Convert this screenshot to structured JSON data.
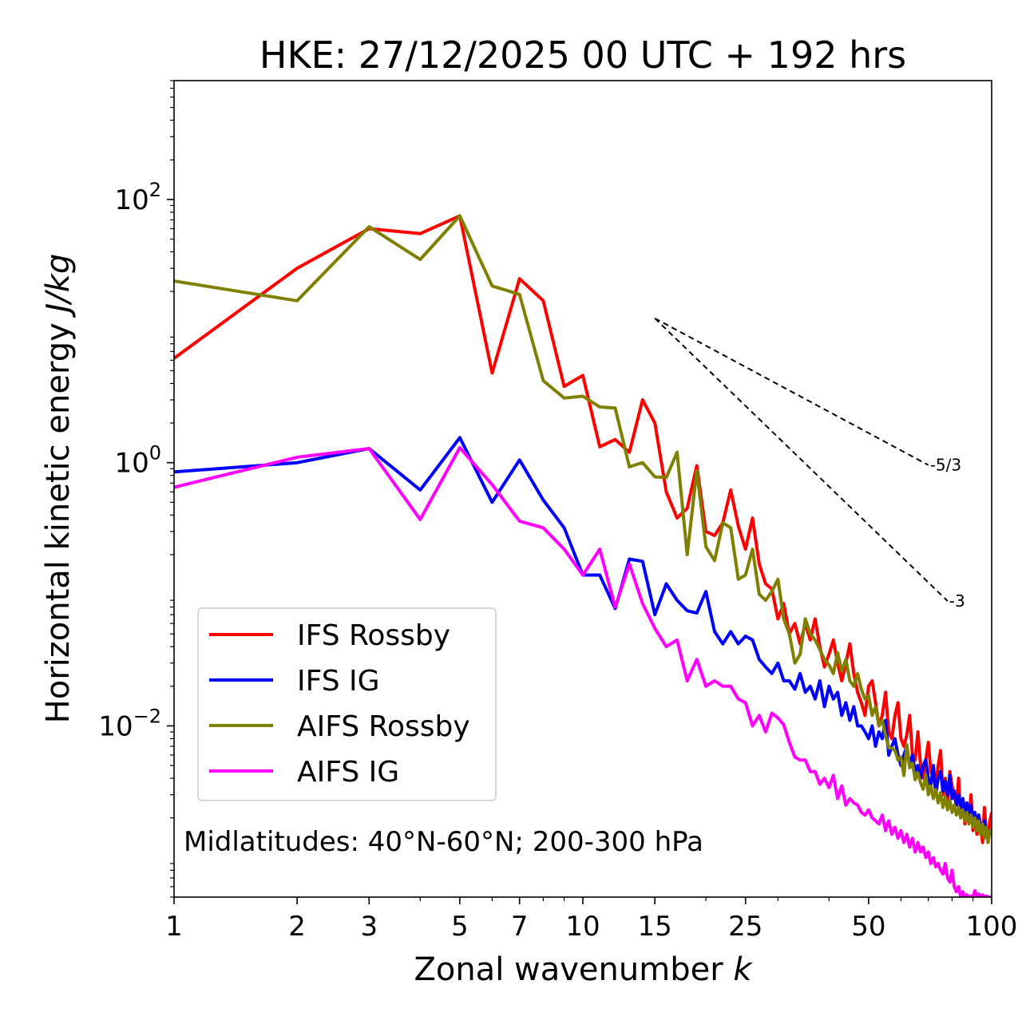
{
  "chart_data": {
    "type": "line",
    "title": "HKE: 27/12/2025 00 UTC + 192 hrs",
    "xlabel": "Zonal wavenumber",
    "xlabel_italic": "k",
    "ylabel": "Horizontal kinetic energy",
    "ylabel_italic": "J/kg",
    "xscale": "log",
    "yscale": "log",
    "xlim": [
      1,
      100
    ],
    "ylim": [
      0.0005,
      800
    ],
    "x_ticks": [
      {
        "value": 1,
        "label": "1"
      },
      {
        "value": 2,
        "label": "2"
      },
      {
        "value": 3,
        "label": "3"
      },
      {
        "value": 5,
        "label": "5"
      },
      {
        "value": 7,
        "label": "7"
      },
      {
        "value": 10,
        "label": "10"
      },
      {
        "value": 15,
        "label": "15"
      },
      {
        "value": 25,
        "label": "25"
      },
      {
        "value": 50,
        "label": "50"
      },
      {
        "value": 100,
        "label": "100"
      }
    ],
    "y_ticks": [
      {
        "value": 0.01,
        "base": "10",
        "exp": "−2"
      },
      {
        "value": 1,
        "base": "10",
        "exp": "0"
      },
      {
        "value": 100,
        "base": "10",
        "exp": "2"
      }
    ],
    "annotation": "Midlatitudes: 40°N-60°N; 200-300 hPa",
    "legend_position": "lower-left",
    "reference_slopes": [
      {
        "label": "-5/3",
        "slope": -1.6667,
        "x_start": 15,
        "y_start": 12.5,
        "x_end": 70
      },
      {
        "label": "-3",
        "slope": -3,
        "x_start": 15,
        "y_start": 12.5,
        "x_end": 78
      }
    ],
    "series": [
      {
        "name": "IFS Rossby",
        "color": "#ff0000",
        "x": [
          1,
          2,
          3,
          4,
          5,
          6,
          7,
          8,
          9,
          10,
          11,
          12,
          13,
          14,
          15,
          16,
          17,
          18,
          19,
          20,
          21,
          22,
          23,
          24,
          25,
          26,
          27,
          28,
          29,
          30,
          31,
          32,
          33,
          34,
          35,
          36,
          37,
          38,
          39,
          40,
          41,
          42,
          43,
          44,
          45,
          46,
          47,
          48,
          49,
          50,
          51,
          52,
          53,
          54,
          55,
          56,
          57,
          58,
          59,
          60,
          61,
          62,
          63,
          64,
          65,
          66,
          67,
          68,
          69,
          70,
          71,
          72,
          73,
          74,
          75,
          76,
          77,
          78,
          79,
          80,
          81,
          82,
          83,
          84,
          85,
          86,
          87,
          88,
          89,
          90,
          91,
          92,
          93,
          94,
          95,
          96,
          97,
          98,
          99,
          100
        ],
        "values": [
          6.2,
          30,
          60,
          55,
          75,
          4.8,
          25,
          17,
          3.8,
          4.6,
          1.32,
          1.5,
          1.2,
          3.0,
          2.0,
          0.6,
          0.38,
          0.45,
          0.95,
          0.3,
          0.28,
          0.35,
          0.62,
          0.33,
          0.22,
          0.38,
          0.17,
          0.12,
          0.11,
          0.065,
          0.085,
          0.05,
          0.06,
          0.042,
          0.06,
          0.045,
          0.065,
          0.04,
          0.028,
          0.035,
          0.045,
          0.03,
          0.022,
          0.03,
          0.042,
          0.025,
          0.018,
          0.015,
          0.012,
          0.02,
          0.022,
          0.015,
          0.01,
          0.012,
          0.018,
          0.009,
          0.008,
          0.012,
          0.015,
          0.008,
          0.007,
          0.0085,
          0.012,
          0.006,
          0.0055,
          0.009,
          0.005,
          0.004,
          0.0055,
          0.0075,
          0.0045,
          0.004,
          0.0035,
          0.005,
          0.0065,
          0.003,
          0.004,
          0.0025,
          0.0045,
          0.0035,
          0.003,
          0.0025,
          0.004,
          0.002,
          0.0028,
          0.0018,
          0.0025,
          0.002,
          0.003,
          0.0016,
          0.0022,
          0.0015,
          0.002,
          0.0018,
          0.0013,
          0.0024,
          0.0016,
          0.0014,
          0.0019,
          0.0022
        ]
      },
      {
        "name": "IFS IG",
        "color": "#0000ff",
        "x": [
          1,
          2,
          3,
          4,
          5,
          6,
          7,
          8,
          9,
          10,
          11,
          12,
          13,
          14,
          15,
          16,
          17,
          18,
          19,
          20,
          21,
          22,
          23,
          24,
          25,
          26,
          27,
          28,
          29,
          30,
          31,
          32,
          33,
          34,
          35,
          36,
          37,
          38,
          39,
          40,
          41,
          42,
          43,
          44,
          45,
          46,
          47,
          48,
          49,
          50,
          51,
          52,
          53,
          54,
          55,
          56,
          57,
          58,
          59,
          60,
          61,
          62,
          63,
          64,
          65,
          66,
          67,
          68,
          69,
          70,
          71,
          72,
          73,
          74,
          75,
          76,
          77,
          78,
          79,
          80,
          81,
          82,
          83,
          84,
          85,
          86,
          87,
          88,
          89,
          90,
          91,
          92,
          93,
          94,
          95,
          96,
          97,
          98,
          99,
          100
        ],
        "values": [
          0.85,
          1.0,
          1.28,
          0.62,
          1.55,
          0.5,
          1.05,
          0.52,
          0.32,
          0.14,
          0.14,
          0.078,
          0.185,
          0.178,
          0.07,
          0.12,
          0.09,
          0.075,
          0.072,
          0.105,
          0.052,
          0.042,
          0.052,
          0.042,
          0.048,
          0.045,
          0.032,
          0.028,
          0.025,
          0.03,
          0.022,
          0.022,
          0.019,
          0.025,
          0.018,
          0.02,
          0.016,
          0.022,
          0.014,
          0.02,
          0.016,
          0.018,
          0.012,
          0.015,
          0.011,
          0.014,
          0.01,
          0.01,
          0.009,
          0.008,
          0.01,
          0.007,
          0.009,
          0.008,
          0.011,
          0.006,
          0.007,
          0.008,
          0.006,
          0.005,
          0.006,
          0.007,
          0.005,
          0.006,
          0.0045,
          0.005,
          0.004,
          0.005,
          0.0055,
          0.004,
          0.0035,
          0.005,
          0.003,
          0.004,
          0.0045,
          0.0032,
          0.0038,
          0.003,
          0.0042,
          0.0028,
          0.0032,
          0.0025,
          0.003,
          0.0024,
          0.0028,
          0.0022,
          0.0026,
          0.0021,
          0.0025,
          0.0019,
          0.0022,
          0.0018,
          0.0021,
          0.0017,
          0.0016,
          0.0019,
          0.0015,
          0.0014,
          0.0016,
          0.0015
        ]
      },
      {
        "name": "AIFS Rossby",
        "color": "#808000",
        "x": [
          1,
          2,
          3,
          4,
          5,
          6,
          7,
          8,
          9,
          10,
          11,
          12,
          13,
          14,
          15,
          16,
          17,
          18,
          19,
          20,
          21,
          22,
          23,
          24,
          25,
          26,
          27,
          28,
          29,
          30,
          31,
          32,
          33,
          34,
          35,
          36,
          37,
          38,
          39,
          40,
          41,
          42,
          43,
          44,
          45,
          46,
          47,
          48,
          49,
          50,
          51,
          52,
          53,
          54,
          55,
          56,
          57,
          58,
          59,
          60,
          61,
          62,
          63,
          64,
          65,
          66,
          67,
          68,
          69,
          70,
          71,
          72,
          73,
          74,
          75,
          76,
          77,
          78,
          79,
          80,
          81,
          82,
          83,
          84,
          85,
          86,
          87,
          88,
          89,
          90,
          91,
          92,
          93,
          94,
          95,
          96,
          97,
          98,
          99,
          100
        ],
        "values": [
          24,
          17,
          62,
          35,
          75,
          22,
          19,
          4.2,
          3.1,
          3.2,
          2.65,
          2.6,
          0.93,
          1.0,
          0.78,
          0.77,
          1.2,
          0.2,
          0.87,
          0.23,
          0.18,
          0.35,
          0.32,
          0.13,
          0.14,
          0.22,
          0.1,
          0.09,
          0.105,
          0.13,
          0.065,
          0.05,
          0.03,
          0.035,
          0.065,
          0.05,
          0.045,
          0.038,
          0.032,
          0.029,
          0.025,
          0.036,
          0.026,
          0.032,
          0.022,
          0.02,
          0.025,
          0.019,
          0.016,
          0.017,
          0.012,
          0.014,
          0.01,
          0.011,
          0.0085,
          0.0068,
          0.0068,
          0.0065,
          0.0055,
          0.0058,
          0.0042,
          0.0072,
          0.0048,
          0.0052,
          0.0039,
          0.0044,
          0.0037,
          0.0033,
          0.0042,
          0.003,
          0.0035,
          0.0028,
          0.0033,
          0.0026,
          0.0031,
          0.0024,
          0.0029,
          0.0023,
          0.0027,
          0.0022,
          0.0025,
          0.0021,
          0.0024,
          0.002,
          0.0023,
          0.0019,
          0.0022,
          0.0018,
          0.0021,
          0.0017,
          0.002,
          0.0016,
          0.0019,
          0.0015,
          0.0018,
          0.0014,
          0.0017,
          0.0013,
          0.0016,
          0.0015
        ]
      },
      {
        "name": "AIFS IG",
        "color": "#ff00ff",
        "x": [
          1,
          2,
          3,
          4,
          5,
          6,
          7,
          8,
          9,
          10,
          11,
          12,
          13,
          14,
          15,
          16,
          17,
          18,
          19,
          20,
          21,
          22,
          23,
          24,
          25,
          26,
          27,
          28,
          29,
          30,
          31,
          32,
          33,
          34,
          35,
          36,
          37,
          38,
          39,
          40,
          41,
          42,
          43,
          44,
          45,
          46,
          47,
          48,
          49,
          50,
          51,
          52,
          53,
          54,
          55,
          56,
          57,
          58,
          59,
          60,
          61,
          62,
          63,
          64,
          65,
          66,
          67,
          68,
          69,
          70,
          71,
          72,
          73,
          74,
          75,
          76,
          77,
          78,
          79,
          80,
          81,
          82,
          83,
          84,
          85,
          86,
          87,
          88,
          89,
          90,
          91,
          92,
          93,
          94,
          95,
          96,
          97,
          98,
          99,
          100
        ],
        "values": [
          0.65,
          1.1,
          1.28,
          0.37,
          1.3,
          0.68,
          0.36,
          0.32,
          0.22,
          0.14,
          0.22,
          0.08,
          0.17,
          0.085,
          0.055,
          0.04,
          0.045,
          0.022,
          0.032,
          0.02,
          0.022,
          0.02,
          0.02,
          0.016,
          0.015,
          0.01,
          0.012,
          0.009,
          0.0125,
          0.0115,
          0.0102,
          0.0075,
          0.0058,
          0.0055,
          0.0055,
          0.0045,
          0.0045,
          0.0036,
          0.004,
          0.0034,
          0.0042,
          0.0028,
          0.0035,
          0.0025,
          0.0028,
          0.0026,
          0.0025,
          0.0022,
          0.0021,
          0.0023,
          0.002,
          0.0019,
          0.0018,
          0.0021,
          0.0016,
          0.0019,
          0.0015,
          0.0017,
          0.0014,
          0.0016,
          0.0013,
          0.0015,
          0.0012,
          0.0014,
          0.0011,
          0.0013,
          0.0011,
          0.0012,
          0.001,
          0.0011,
          0.0009,
          0.001,
          0.00085,
          0.0009,
          0.0008,
          0.00075,
          0.0009,
          0.0007,
          0.00065,
          0.0008,
          0.0006,
          0.00055,
          0.0006,
          0.0005,
          0.00055,
          0.0005,
          0.00052,
          0.0005,
          0.00051,
          0.0005,
          0.00056,
          0.0005,
          0.00053,
          0.0005,
          0.00052,
          0.0005,
          0.00051,
          0.0005,
          0.0005,
          0.0005
        ]
      }
    ]
  }
}
